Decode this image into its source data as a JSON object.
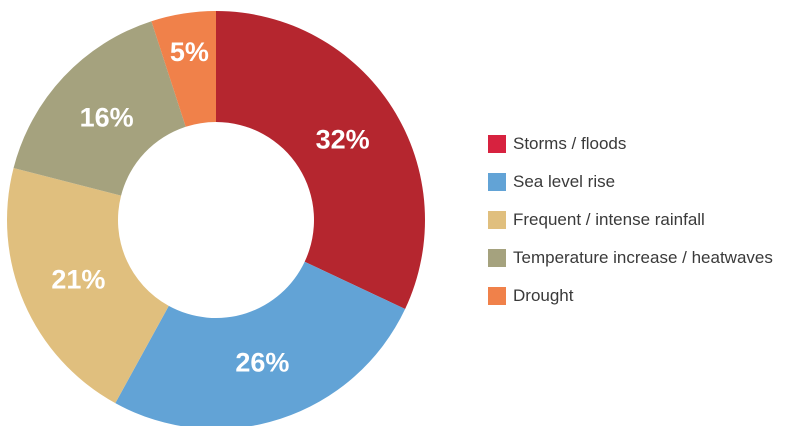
{
  "chart_data": {
    "type": "pie",
    "variant": "donut",
    "categories": [
      "Storms / floods",
      "Sea level rise",
      "Frequent / intense rainfall",
      "Temperature increase / heatwaves",
      "Drought"
    ],
    "values": [
      32,
      26,
      21,
      16,
      5
    ],
    "labels": [
      "32%",
      "26%",
      "21%",
      "16%",
      "5%"
    ],
    "slice_colors": [
      "#b5262f",
      "#62a3d6",
      "#e0bf7e",
      "#a5a27e",
      "#f0814a"
    ],
    "legend_colors": [
      "#d7223f",
      "#62a3d6",
      "#e0bf7e",
      "#a5a27e",
      "#f0814a"
    ],
    "legend_position": "right",
    "start_angle": "top",
    "direction": "clockwise"
  }
}
